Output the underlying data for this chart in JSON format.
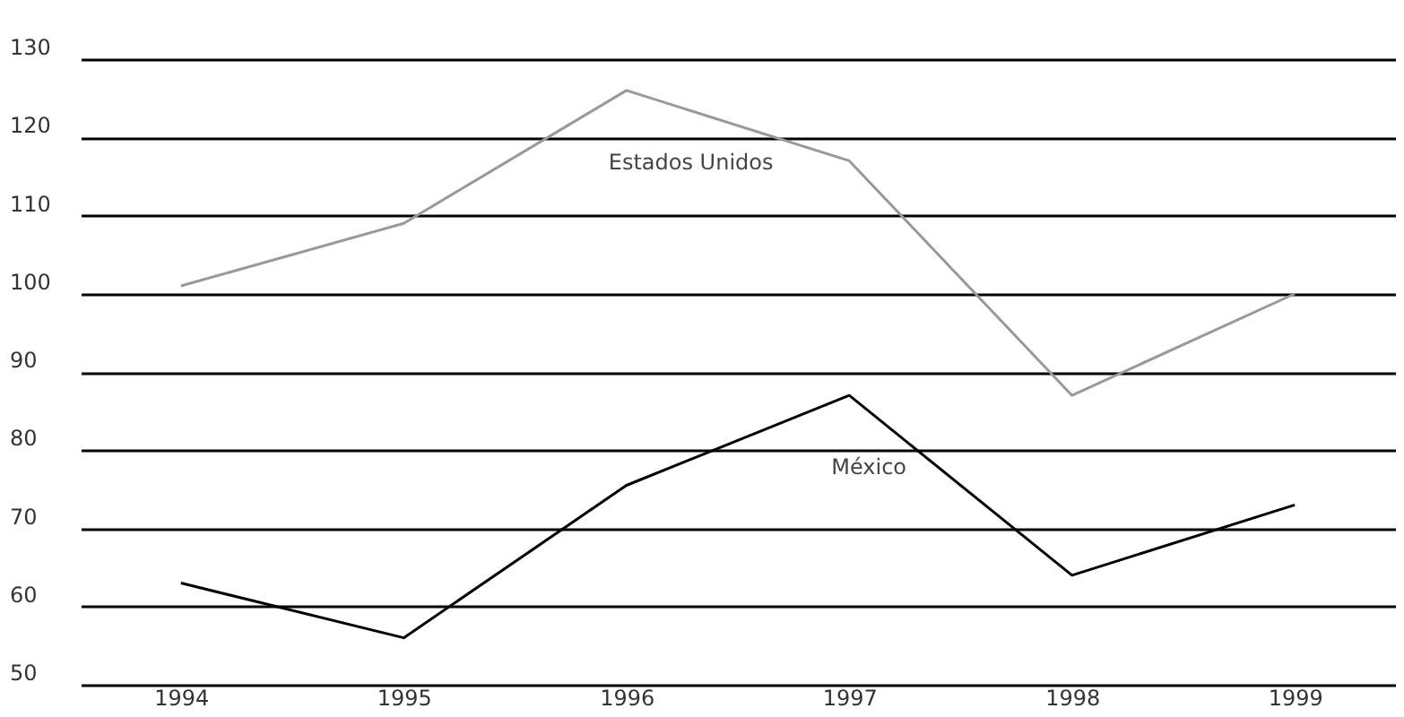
{
  "chart_data": {
    "type": "line",
    "categories": [
      "1994",
      "1995",
      "1996",
      "1997",
      "1998",
      "1999"
    ],
    "series": [
      {
        "name": "Estados Unidos",
        "color": "#999999",
        "values": [
          101,
          109,
          126,
          117,
          87,
          100
        ]
      },
      {
        "name": "México",
        "color": "#000000",
        "values": [
          63,
          56,
          75.5,
          87,
          64,
          73
        ]
      }
    ],
    "ylim": [
      50,
      130
    ],
    "yticks": [
      50,
      60,
      70,
      80,
      90,
      100,
      110,
      120,
      130
    ],
    "grid": "y",
    "legend": false,
    "marker": "none",
    "line_style": "solid"
  }
}
